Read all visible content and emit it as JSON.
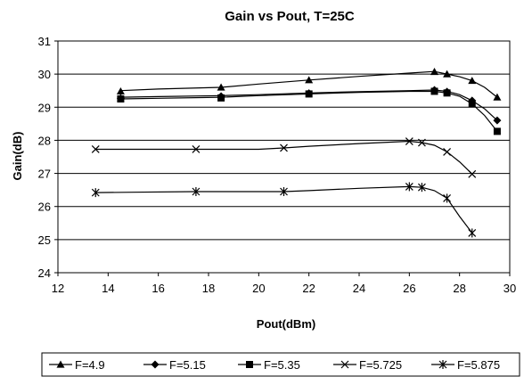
{
  "chart_data": {
    "type": "line",
    "title": "Gain vs Pout, T=25C",
    "xlabel": "Pout(dBm)",
    "ylabel": "Gain(dB)",
    "xlim": [
      12,
      30
    ],
    "ylim": [
      24,
      31
    ],
    "xticks": [
      12,
      14,
      16,
      18,
      20,
      22,
      24,
      26,
      28,
      30
    ],
    "yticks": [
      24,
      25,
      26,
      27,
      28,
      29,
      30,
      31
    ],
    "grid": "horizontal",
    "legend_position": "bottom",
    "series": [
      {
        "name": "F=4.9",
        "marker": "triangle",
        "line": [
          [
            14.5,
            29.5
          ],
          [
            16,
            29.55
          ],
          [
            18.5,
            29.6
          ],
          [
            20,
            29.7
          ],
          [
            22,
            29.82
          ],
          [
            24,
            29.93
          ],
          [
            26,
            30.03
          ],
          [
            27,
            30.08
          ],
          [
            27.5,
            30.0
          ],
          [
            28,
            29.92
          ],
          [
            28.5,
            29.8
          ],
          [
            29,
            29.6
          ],
          [
            29.5,
            29.3
          ]
        ],
        "markers": [
          [
            14.5,
            29.48
          ],
          [
            18.5,
            29.6
          ],
          [
            22,
            29.82
          ],
          [
            27,
            30.07
          ],
          [
            27.5,
            30.0
          ],
          [
            28.5,
            29.8
          ],
          [
            29.5,
            29.3
          ]
        ]
      },
      {
        "name": "F=5.15",
        "marker": "diamond",
        "line": [
          [
            14.5,
            29.3
          ],
          [
            16,
            29.32
          ],
          [
            18.5,
            29.35
          ],
          [
            20,
            29.38
          ],
          [
            22,
            29.43
          ],
          [
            24,
            29.47
          ],
          [
            26,
            29.5
          ],
          [
            27,
            29.52
          ],
          [
            27.5,
            29.48
          ],
          [
            28,
            29.38
          ],
          [
            28.5,
            29.2
          ],
          [
            29,
            28.95
          ],
          [
            29.5,
            28.6
          ]
        ],
        "markers": [
          [
            14.5,
            29.27
          ],
          [
            18.5,
            29.33
          ],
          [
            22,
            29.42
          ],
          [
            27,
            29.52
          ],
          [
            27.5,
            29.47
          ],
          [
            28.5,
            29.2
          ],
          [
            29.5,
            28.6
          ]
        ]
      },
      {
        "name": "F=5.35",
        "marker": "square",
        "line": [
          [
            14.5,
            29.25
          ],
          [
            16,
            29.27
          ],
          [
            18.5,
            29.3
          ],
          [
            20,
            29.35
          ],
          [
            22,
            29.4
          ],
          [
            24,
            29.45
          ],
          [
            26,
            29.48
          ],
          [
            27,
            29.48
          ],
          [
            27.5,
            29.43
          ],
          [
            28,
            29.33
          ],
          [
            28.5,
            29.1
          ],
          [
            29,
            28.75
          ],
          [
            29.5,
            28.27
          ]
        ],
        "markers": [
          [
            14.5,
            29.25
          ],
          [
            18.5,
            29.28
          ],
          [
            22,
            29.4
          ],
          [
            27,
            29.48
          ],
          [
            27.5,
            29.43
          ],
          [
            28.5,
            29.1
          ],
          [
            29.5,
            28.27
          ]
        ]
      },
      {
        "name": "F=5.725",
        "marker": "x",
        "line": [
          [
            13.5,
            27.73
          ],
          [
            15,
            27.73
          ],
          [
            17.5,
            27.73
          ],
          [
            20,
            27.73
          ],
          [
            21,
            27.77
          ],
          [
            22,
            27.82
          ],
          [
            24,
            27.9
          ],
          [
            26,
            27.97
          ],
          [
            26.5,
            27.93
          ],
          [
            27,
            27.85
          ],
          [
            27.5,
            27.65
          ],
          [
            28,
            27.35
          ],
          [
            28.5,
            26.98
          ]
        ],
        "markers": [
          [
            13.5,
            27.73
          ],
          [
            17.5,
            27.73
          ],
          [
            21,
            27.77
          ],
          [
            26,
            27.97
          ],
          [
            26.5,
            27.93
          ],
          [
            27.5,
            27.65
          ],
          [
            28.5,
            26.98
          ]
        ]
      },
      {
        "name": "F=5.875",
        "marker": "star",
        "line": [
          [
            13.5,
            26.42
          ],
          [
            15,
            26.43
          ],
          [
            17.5,
            26.45
          ],
          [
            20,
            26.45
          ],
          [
            21,
            26.45
          ],
          [
            22,
            26.48
          ],
          [
            24,
            26.55
          ],
          [
            26,
            26.6
          ],
          [
            26.5,
            26.58
          ],
          [
            27,
            26.48
          ],
          [
            27.5,
            26.25
          ],
          [
            28,
            25.7
          ],
          [
            28.5,
            25.2
          ]
        ],
        "markers": [
          [
            13.5,
            26.42
          ],
          [
            17.5,
            26.45
          ],
          [
            21,
            26.45
          ],
          [
            26,
            26.6
          ],
          [
            26.5,
            26.58
          ],
          [
            27.5,
            26.25
          ],
          [
            28.5,
            25.2
          ]
        ]
      }
    ]
  }
}
